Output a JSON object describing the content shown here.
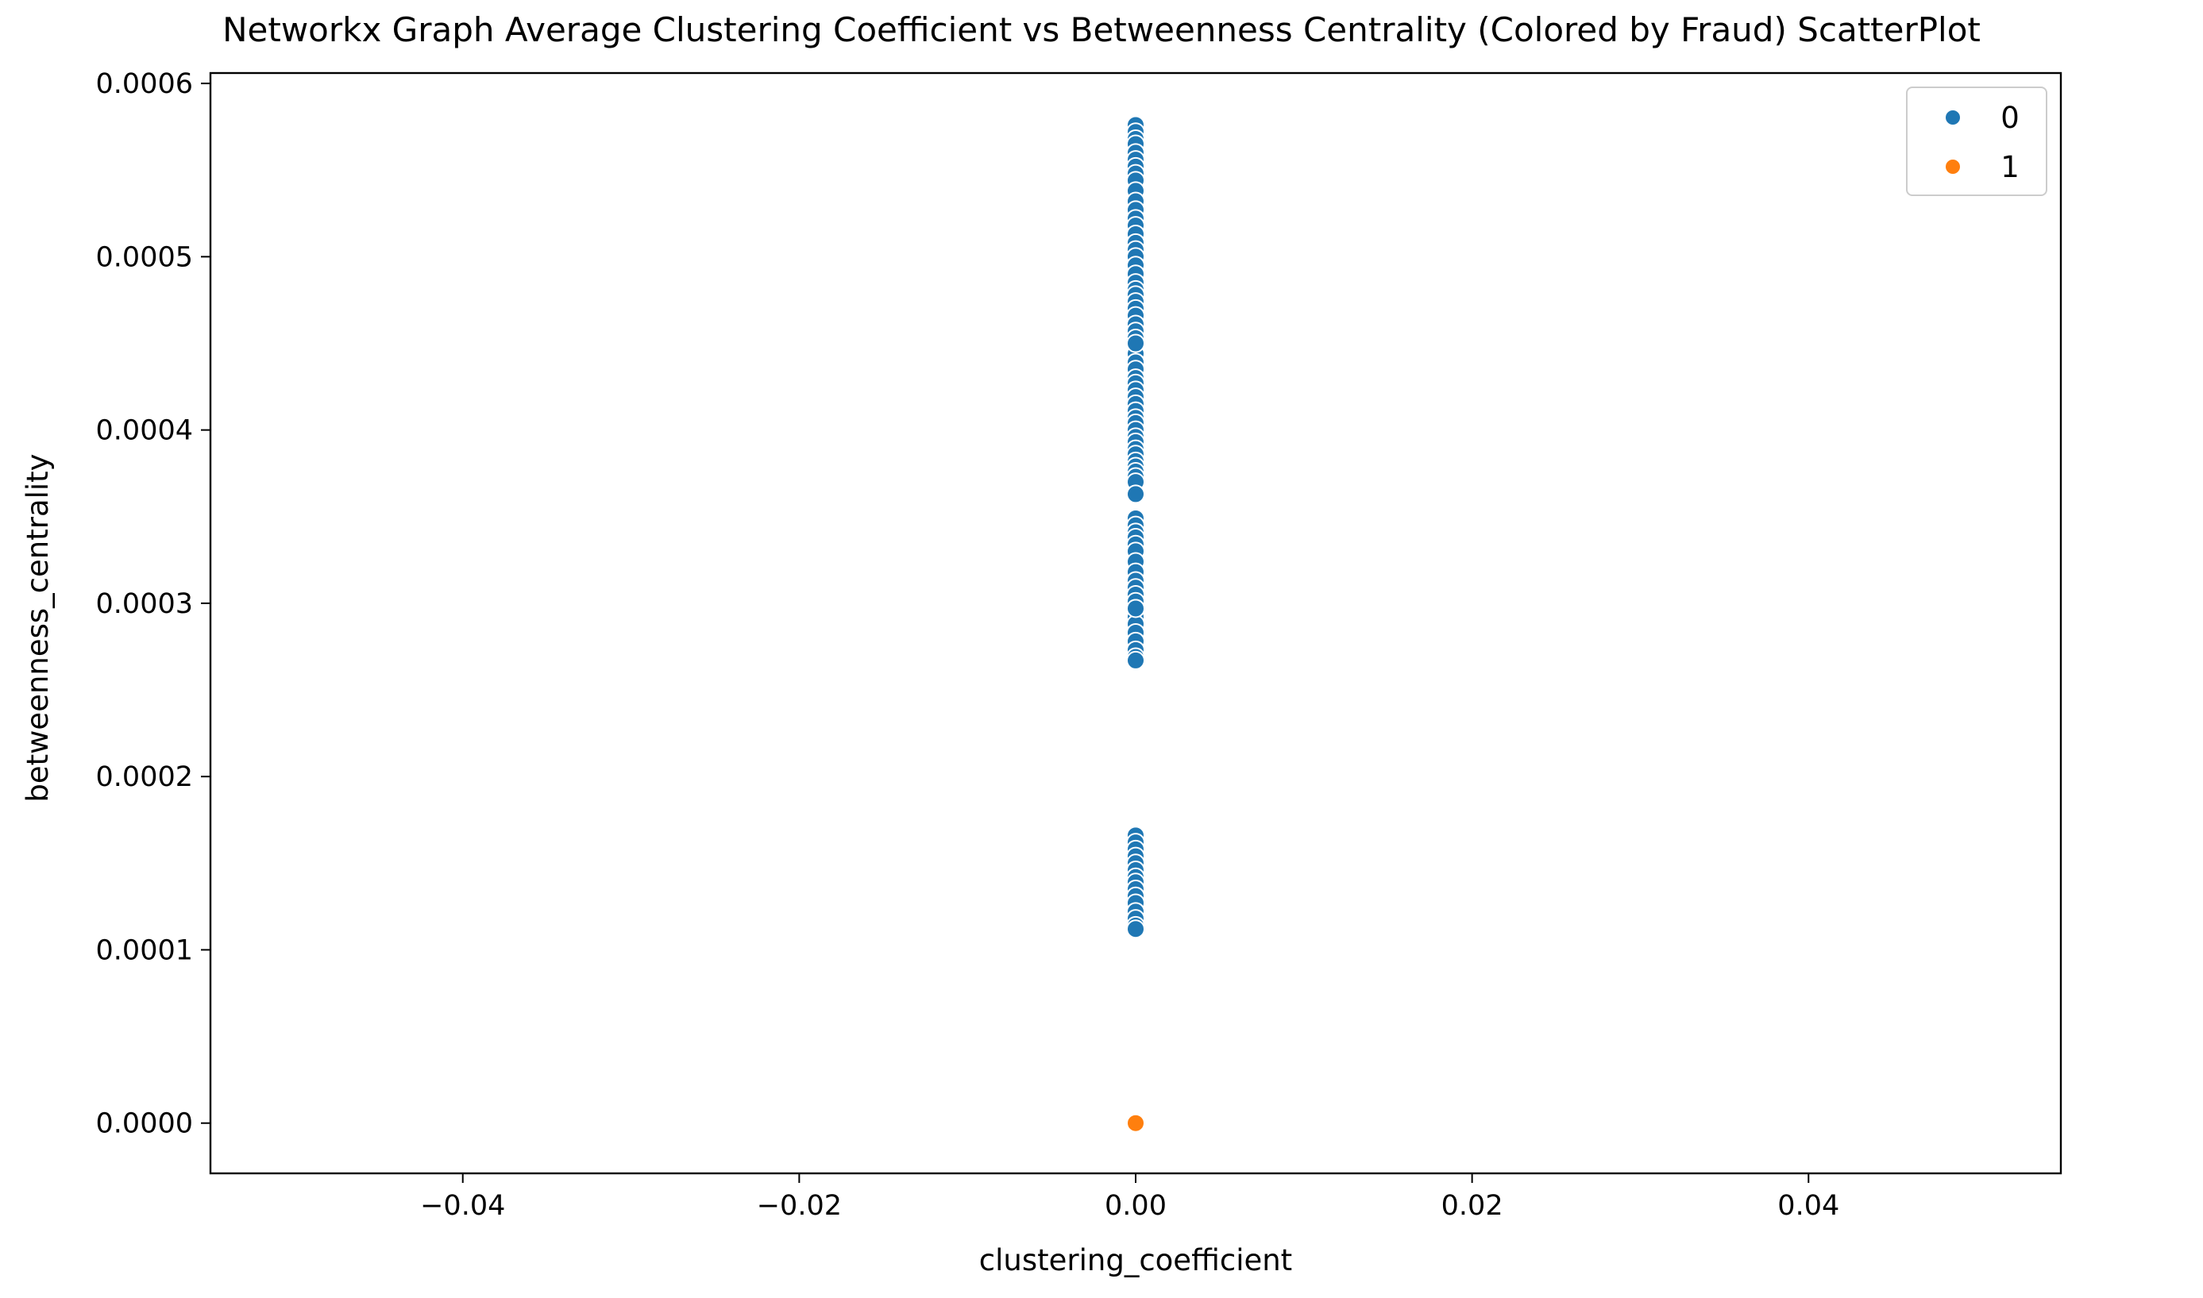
{
  "chart_data": {
    "type": "scatter",
    "title": "Networkx Graph Average Clustering Coefficient vs Betweenness Centrality (Colored by Fraud) ScatterPlot",
    "xlabel": "clustering_coefficient",
    "ylabel": "betweenness_centrality",
    "xlim": [
      -0.055,
      0.055
    ],
    "ylim": [
      -2.9e-05,
      0.000606
    ],
    "x_ticks": [
      -0.04,
      -0.02,
      0.0,
      0.02,
      0.04
    ],
    "x_tick_labels": [
      "−0.04",
      "−0.02",
      "0.00",
      "0.02",
      "0.04"
    ],
    "y_ticks": [
      0.0,
      0.0001,
      0.0002,
      0.0003,
      0.0004,
      0.0005,
      0.0006
    ],
    "y_tick_labels": [
      "0.0000",
      "0.0001",
      "0.0002",
      "0.0003",
      "0.0004",
      "0.0005",
      "0.0006"
    ],
    "grid": false,
    "legend_position": "top-right",
    "series": [
      {
        "name": "0",
        "color": "#1f77b4",
        "x": [
          0,
          0,
          0,
          0,
          0,
          0,
          0,
          0,
          0,
          0,
          0,
          0,
          0,
          0,
          0,
          0,
          0,
          0,
          0,
          0,
          0,
          0,
          0,
          0,
          0,
          0,
          0,
          0,
          0,
          0,
          0,
          0,
          0,
          0,
          0,
          0,
          0,
          0,
          0,
          0,
          0,
          0,
          0,
          0,
          0,
          0,
          0,
          0,
          0,
          0,
          0,
          0,
          0,
          0,
          0,
          0,
          0,
          0,
          0,
          0,
          0,
          0,
          0,
          0,
          0,
          0,
          0,
          0,
          0,
          0,
          0,
          0,
          0,
          0,
          0,
          0,
          0,
          0,
          0,
          0,
          0,
          0,
          0,
          0,
          0,
          0,
          0,
          0,
          0
        ],
        "y": [
          0.000576,
          0.000572,
          0.000568,
          0.000565,
          0.00056,
          0.000556,
          0.000552,
          0.000548,
          0.000544,
          0.000538,
          0.000532,
          0.000527,
          0.000522,
          0.000518,
          0.000513,
          0.000508,
          0.000504,
          0.0005,
          0.000495,
          0.00049,
          0.000485,
          0.000481,
          0.000478,
          0.000474,
          0.00047,
          0.000466,
          0.000461,
          0.000457,
          0.000453,
          0.000449,
          0.000444,
          0.000439,
          0.000435,
          0.00043,
          0.000427,
          0.000423,
          0.000419,
          0.000415,
          0.000411,
          0.000407,
          0.000404,
          0.0004,
          0.000396,
          0.000393,
          0.000389,
          0.000386,
          0.000382,
          0.000379,
          0.000376,
          0.000373,
          0.00037,
          0.000349,
          0.000345,
          0.000341,
          0.000338,
          0.000334,
          0.00033,
          0.000324,
          0.000318,
          0.000313,
          0.000309,
          0.000305,
          0.000301,
          0.000297,
          0.000292,
          0.000288,
          0.000283,
          0.000278,
          0.000273,
          0.000269,
          0.000267,
          0.000166,
          0.000162,
          0.000158,
          0.000154,
          0.00015,
          0.000146,
          0.000142,
          0.000139,
          0.000135,
          0.000131,
          0.000127,
          0.000122,
          0.000118,
          0.000114,
          0.000112,
          0.00045,
          0.000363,
          0.000297
        ],
        "note_values_in_y": "y"
      },
      {
        "name": "1",
        "color": "#ff7f0e",
        "x": [
          0
        ],
        "y": [
          0.0
        ]
      }
    ]
  }
}
